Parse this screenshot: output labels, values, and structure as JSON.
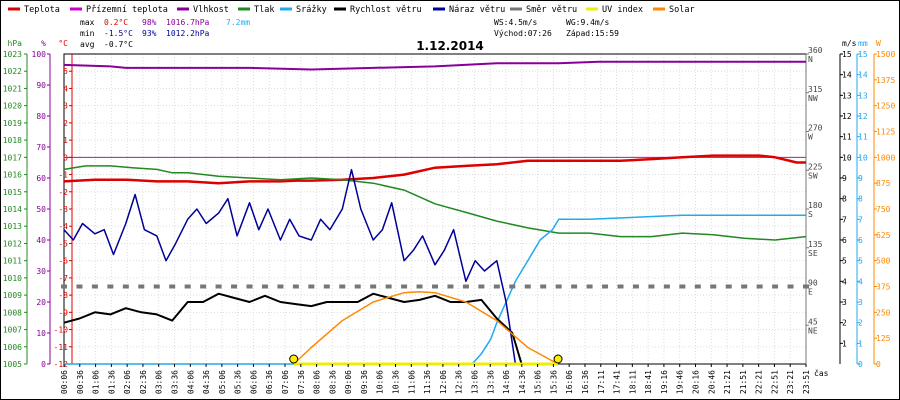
{
  "chart_data": {
    "type": "line",
    "title": "1.12.2014",
    "xlabel": "čas",
    "legend": [
      {
        "name": "Teplota",
        "color": "#dd0000"
      },
      {
        "name": "Přízemní teplota",
        "color": "#cc00cc"
      },
      {
        "name": "Vlhkost",
        "color": "#880099"
      },
      {
        "name": "Tlak",
        "color": "#228822"
      },
      {
        "name": "Srážky",
        "color": "#22aaee"
      },
      {
        "name": "Rychlost větru",
        "color": "#000000"
      },
      {
        "name": "Náraz větru",
        "color": "#000099"
      },
      {
        "name": "Směr větru",
        "color": "#777777"
      },
      {
        "name": "UV index",
        "color": "#eeee00"
      },
      {
        "name": "Solar",
        "color": "#ff8800"
      }
    ],
    "stats": {
      "max": {
        "label": "max",
        "temp": "0.2°C",
        "hum": "98%",
        "press": "1016.7hPa",
        "rain": "7.2mm"
      },
      "min": {
        "label": "min",
        "temp": "-1.5°C",
        "hum": "93%",
        "press": "1012.2hPa"
      },
      "avg": {
        "label": "avg",
        "temp": "-0.7°C"
      }
    },
    "info": {
      "ws": "WS:4.5m/s",
      "wg": "WG:9.4m/s",
      "sunrise": "Východ:07:26",
      "sunset": "Západ:15:59"
    },
    "x_ticks": [
      "00:06",
      "00:36",
      "01:06",
      "01:36",
      "02:06",
      "02:36",
      "03:06",
      "03:36",
      "04:06",
      "04:36",
      "05:06",
      "05:36",
      "06:06",
      "06:36",
      "07:06",
      "07:36",
      "08:06",
      "08:36",
      "09:06",
      "09:36",
      "10:06",
      "10:36",
      "11:06",
      "11:36",
      "12:06",
      "12:36",
      "13:06",
      "13:36",
      "14:06",
      "14:36",
      "15:06",
      "15:36",
      "16:06",
      "16:36",
      "17:11",
      "17:41",
      "18:11",
      "18:41",
      "19:16",
      "19:46",
      "20:16",
      "20:46",
      "21:21",
      "21:51",
      "22:21",
      "22:51",
      "23:21",
      "23:51"
    ],
    "axes": {
      "hpa": {
        "label": "hPa",
        "color": "#228822",
        "range": [
          1005,
          1023
        ],
        "ticks": [
          1005,
          1006,
          1007,
          1008,
          1009,
          1010,
          1011,
          1012,
          1013,
          1014,
          1015,
          1016,
          1017,
          1018,
          1019,
          1020,
          1021,
          1022,
          1023
        ]
      },
      "pct": {
        "label": "%",
        "color": "#880099",
        "range": [
          0,
          100
        ],
        "ticks": [
          0,
          10,
          20,
          30,
          40,
          50,
          60,
          70,
          80,
          90,
          100
        ]
      },
      "celsius": {
        "label": "°C",
        "color": "#dd0000",
        "range": [
          -12,
          6
        ],
        "ticks": [
          -12,
          -11,
          -10,
          -9,
          -8,
          -7,
          -6,
          -5,
          -4,
          -3,
          -2,
          -1,
          0,
          1,
          2,
          3,
          4,
          5
        ]
      },
      "direction": {
        "label": "",
        "color": "#777777",
        "range": [
          0,
          360
        ],
        "ticks": [
          {
            "v": 45,
            "t": "NE"
          },
          {
            "v": 90,
            "t": "E"
          },
          {
            "v": 135,
            "t": "SE"
          },
          {
            "v": 180,
            "t": "S"
          },
          {
            "v": 225,
            "t": "SW"
          },
          {
            "v": 270,
            "t": "W"
          },
          {
            "v": 315,
            "t": "NW"
          },
          {
            "v": 360,
            "t": "N"
          }
        ]
      },
      "ms": {
        "label": "m/s",
        "color": "#000000",
        "range": [
          0,
          15
        ],
        "ticks": [
          1,
          2,
          3,
          4,
          5,
          6,
          7,
          8,
          9,
          10,
          11,
          12,
          13,
          14,
          15
        ]
      },
      "mm": {
        "label": "mm",
        "color": "#22aaee",
        "range": [
          0,
          15
        ],
        "ticks": [
          0,
          1,
          2,
          3,
          4,
          5,
          6,
          7,
          8,
          9,
          10,
          11,
          12,
          13,
          14,
          15
        ]
      },
      "wm2": {
        "label": "W",
        "color": "#ff8800",
        "range": [
          0,
          1500
        ],
        "ticks": [
          0,
          125,
          250,
          375,
          500,
          625,
          750,
          875,
          1000,
          1125,
          1250,
          1375,
          1500
        ]
      }
    },
    "series": [
      {
        "name": "Vlhkost",
        "axis": "pct",
        "x": [
          0,
          1.5,
          2,
          4,
          6,
          8,
          10,
          12,
          14,
          16,
          17.3,
          20,
          24
        ],
        "y": [
          96.5,
          96,
          95.5,
          95.5,
          95.5,
          95,
          95.5,
          96,
          97,
          97,
          97.5,
          97.5,
          97.5
        ]
      },
      {
        "name": "Přízemní teplota",
        "axis": "celsius",
        "x": [
          0,
          24
        ],
        "y": [
          0,
          0
        ]
      },
      {
        "name": "Teplota",
        "axis": "celsius",
        "x": [
          0,
          1,
          2,
          3,
          4,
          5,
          6,
          7,
          7.5,
          8,
          9,
          10,
          11,
          12,
          13,
          14,
          15,
          16,
          17,
          18,
          19,
          20,
          21,
          22,
          22.5,
          23,
          23.7,
          24
        ],
        "y": [
          -1.4,
          -1.3,
          -1.3,
          -1.4,
          -1.4,
          -1.5,
          -1.4,
          -1.4,
          -1.35,
          -1.35,
          -1.3,
          -1.2,
          -1.0,
          -0.6,
          -0.5,
          -0.4,
          -0.2,
          -0.2,
          -0.2,
          -0.2,
          -0.1,
          0.0,
          0.1,
          0.1,
          0.1,
          0.0,
          -0.3,
          -0.3
        ]
      },
      {
        "name": "Tlak",
        "axis": "hpa",
        "x": [
          0,
          0.7,
          1.5,
          2.2,
          3,
          3.5,
          4,
          5,
          6,
          7,
          8,
          9,
          10,
          11,
          12,
          13,
          14,
          15,
          16,
          17,
          18,
          19,
          20,
          21,
          22,
          23,
          24
        ],
        "y": [
          1016.3,
          1016.5,
          1016.5,
          1016.4,
          1016.3,
          1016.1,
          1016.1,
          1015.9,
          1015.8,
          1015.7,
          1015.8,
          1015.7,
          1015.5,
          1015.1,
          1014.3,
          1013.8,
          1013.3,
          1012.9,
          1012.6,
          1012.6,
          1012.4,
          1012.4,
          1012.6,
          1012.5,
          1012.3,
          1012.2,
          1012.4
        ]
      },
      {
        "name": "Srážky",
        "axis": "mm",
        "x": [
          0,
          13.2,
          13.5,
          13.8,
          14,
          14.3,
          14.6,
          15,
          15.4,
          15.8,
          16,
          16.5,
          17,
          20,
          21.3,
          24
        ],
        "y": [
          0,
          0,
          0.5,
          1.2,
          2.0,
          3.0,
          4.0,
          5.0,
          6.0,
          6.5,
          7.0,
          7.0,
          7.0,
          7.2,
          7.2,
          7.2
        ]
      },
      {
        "name": "Rychlost větru",
        "axis": "ms",
        "x": [
          0,
          0.5,
          1,
          1.5,
          2,
          2.5,
          3,
          3.5,
          4,
          4.5,
          5,
          5.5,
          6,
          6.5,
          7,
          7.5,
          8,
          8.5,
          9,
          9.5,
          10,
          10.5,
          11,
          11.5,
          12,
          12.5,
          13,
          13.5,
          14,
          14.5,
          14.8
        ],
        "y": [
          2.0,
          2.2,
          2.5,
          2.4,
          2.7,
          2.5,
          2.4,
          2.1,
          3.0,
          3.0,
          3.4,
          3.2,
          3.0,
          3.3,
          3.0,
          2.9,
          2.8,
          3.0,
          3.0,
          3.0,
          3.4,
          3.2,
          3.0,
          3.1,
          3.3,
          3.0,
          3.0,
          3.1,
          2.2,
          1.5,
          0.0
        ]
      },
      {
        "name": "Náraz větru",
        "axis": "ms",
        "x": [
          0,
          0.3,
          0.6,
          1,
          1.3,
          1.6,
          2,
          2.3,
          2.6,
          3,
          3.3,
          3.6,
          4,
          4.3,
          4.6,
          5,
          5.3,
          5.6,
          6,
          6.3,
          6.6,
          7,
          7.3,
          7.6,
          8,
          8.3,
          8.6,
          9,
          9.3,
          9.6,
          10,
          10.3,
          10.6,
          11,
          11.3,
          11.6,
          12,
          12.3,
          12.6,
          13,
          13.3,
          13.6,
          14,
          14.3,
          14.6
        ],
        "y": [
          6.5,
          6.0,
          6.8,
          6.3,
          6.5,
          5.3,
          6.8,
          8.2,
          6.5,
          6.2,
          5.0,
          5.8,
          7.0,
          7.5,
          6.8,
          7.3,
          8.0,
          6.2,
          7.8,
          6.5,
          7.5,
          6.0,
          7.0,
          6.2,
          6.0,
          7.0,
          6.5,
          7.5,
          9.4,
          7.5,
          6.0,
          6.5,
          7.8,
          5.0,
          5.5,
          6.2,
          4.8,
          5.5,
          6.5,
          4.0,
          5.0,
          4.5,
          5.0,
          3.0,
          0.0
        ]
      },
      {
        "name": "Solar",
        "axis": "wm2",
        "x": [
          7.43,
          8,
          9,
          10,
          11,
          11.5,
          12,
          13,
          14,
          15,
          15.98
        ],
        "y": [
          0,
          80,
          210,
          300,
          345,
          350,
          345,
          300,
          210,
          80,
          0
        ]
      },
      {
        "name": "UV index",
        "axis": "wm2",
        "x": [
          7.43,
          15.98
        ],
        "y": [
          0,
          0
        ]
      }
    ],
    "wind_direction_marks": {
      "axis": "direction",
      "type": "scatter",
      "color": "#777777",
      "x": [
        0,
        0.5,
        1,
        1.5,
        2,
        2.5,
        3,
        3.5,
        4,
        4.5,
        5,
        5.5,
        6,
        6.5,
        7,
        7.5,
        8,
        8.5,
        9,
        9.5,
        10,
        10.5,
        11,
        11.5,
        12,
        12.5,
        13,
        13.5,
        14,
        14.5,
        15,
        15.5,
        16,
        16.5,
        17,
        17.5,
        18,
        18.5,
        19,
        19.5,
        20,
        20.5,
        21,
        21.5,
        22,
        22.5,
        23,
        23.5,
        24
      ],
      "y": [
        90,
        90,
        90,
        90,
        90,
        90,
        90,
        90,
        90,
        90,
        90,
        90,
        90,
        90,
        90,
        90,
        90,
        90,
        90,
        90,
        90,
        90,
        90,
        90,
        90,
        90,
        90,
        90,
        90,
        90,
        90,
        90,
        90,
        90,
        90,
        90,
        90,
        90,
        90,
        90,
        90,
        90,
        90,
        90,
        90,
        90,
        90,
        90,
        90
      ]
    },
    "sun_markers": [
      {
        "x": 7.43
      },
      {
        "x": 15.98
      }
    ]
  }
}
